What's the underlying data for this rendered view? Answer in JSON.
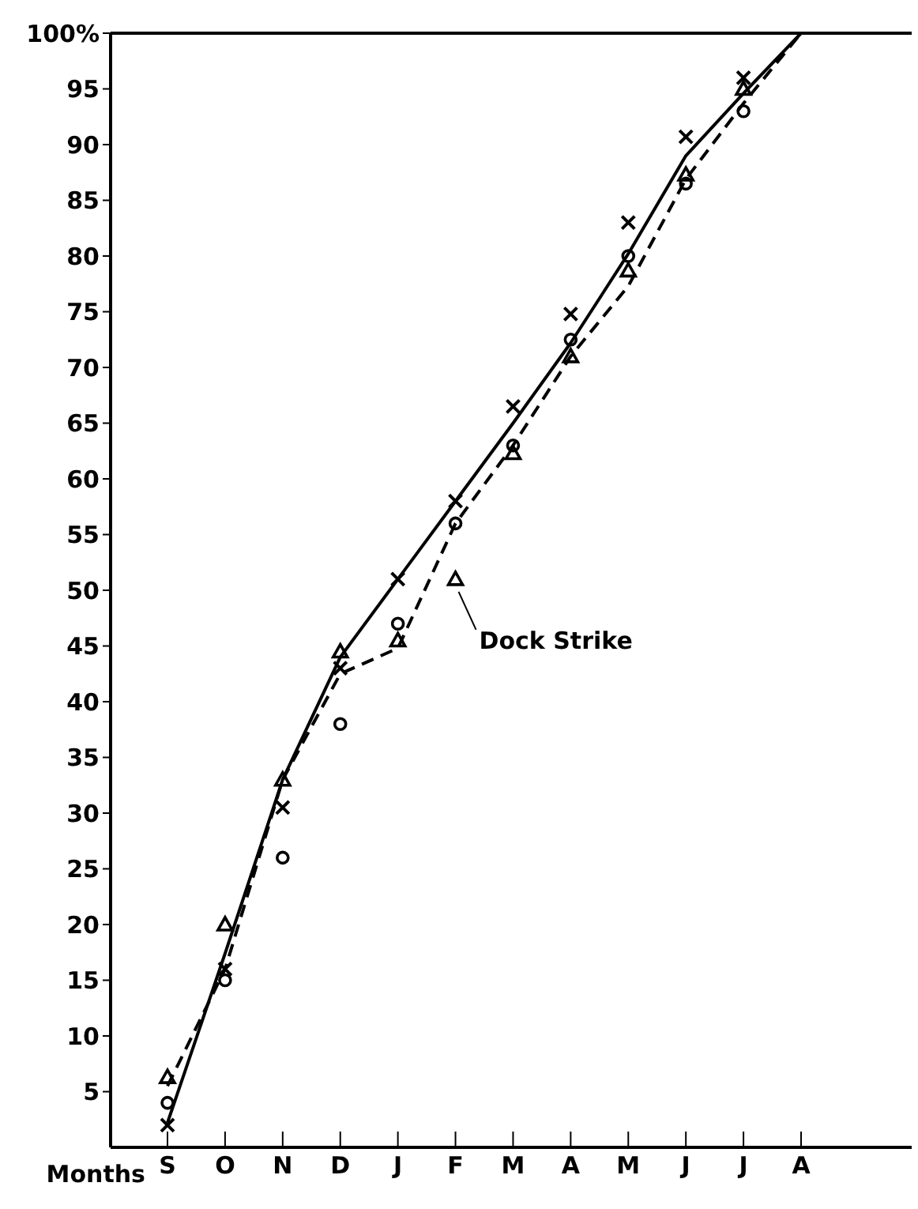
{
  "chart_data": {
    "type": "line",
    "xlabel": "Months",
    "categories": [
      "S",
      "O",
      "N",
      "D",
      "J",
      "F",
      "M",
      "A",
      "M",
      "J",
      "J",
      "A"
    ],
    "ylim": [
      0,
      100
    ],
    "yticks": [
      5,
      10,
      15,
      20,
      25,
      30,
      35,
      40,
      45,
      50,
      55,
      60,
      65,
      70,
      75,
      80,
      85,
      90,
      95,
      {
        "value": 100,
        "label": "100%"
      }
    ],
    "grid": false,
    "legend": false,
    "series": [
      {
        "line_style": "solid",
        "marker": "none",
        "color": "#000000",
        "values": [
          2.2,
          17.4,
          33,
          44,
          51,
          58,
          65,
          72.2,
          80.2,
          89,
          94.6,
          100
        ]
      },
      {
        "line_style": "dashed",
        "marker": "none",
        "color": "#000000",
        "values": [
          5.5,
          16,
          33,
          42.5,
          44.8,
          56,
          63,
          71,
          77.3,
          86.9,
          93.7,
          100
        ]
      },
      {
        "type": "scatter",
        "marker": "cross",
        "color": "#000000",
        "values": [
          2,
          16,
          30.5,
          43,
          51,
          58,
          66.5,
          74.8,
          83,
          90.7,
          96,
          null
        ]
      },
      {
        "type": "scatter",
        "marker": "circle",
        "color": "#000000",
        "values": [
          4,
          15,
          26,
          38,
          47,
          56,
          63,
          72.5,
          80,
          86.5,
          93,
          null
        ]
      },
      {
        "type": "scatter",
        "marker": "triangle",
        "color": "#000000",
        "values": [
          6.3,
          20,
          33,
          44.5,
          45.5,
          51,
          62.3,
          71,
          78.7,
          87.3,
          95,
          null
        ]
      }
    ],
    "annotations": [
      {
        "text": "Dock Strike",
        "x": "F",
        "y": 51
      }
    ]
  }
}
